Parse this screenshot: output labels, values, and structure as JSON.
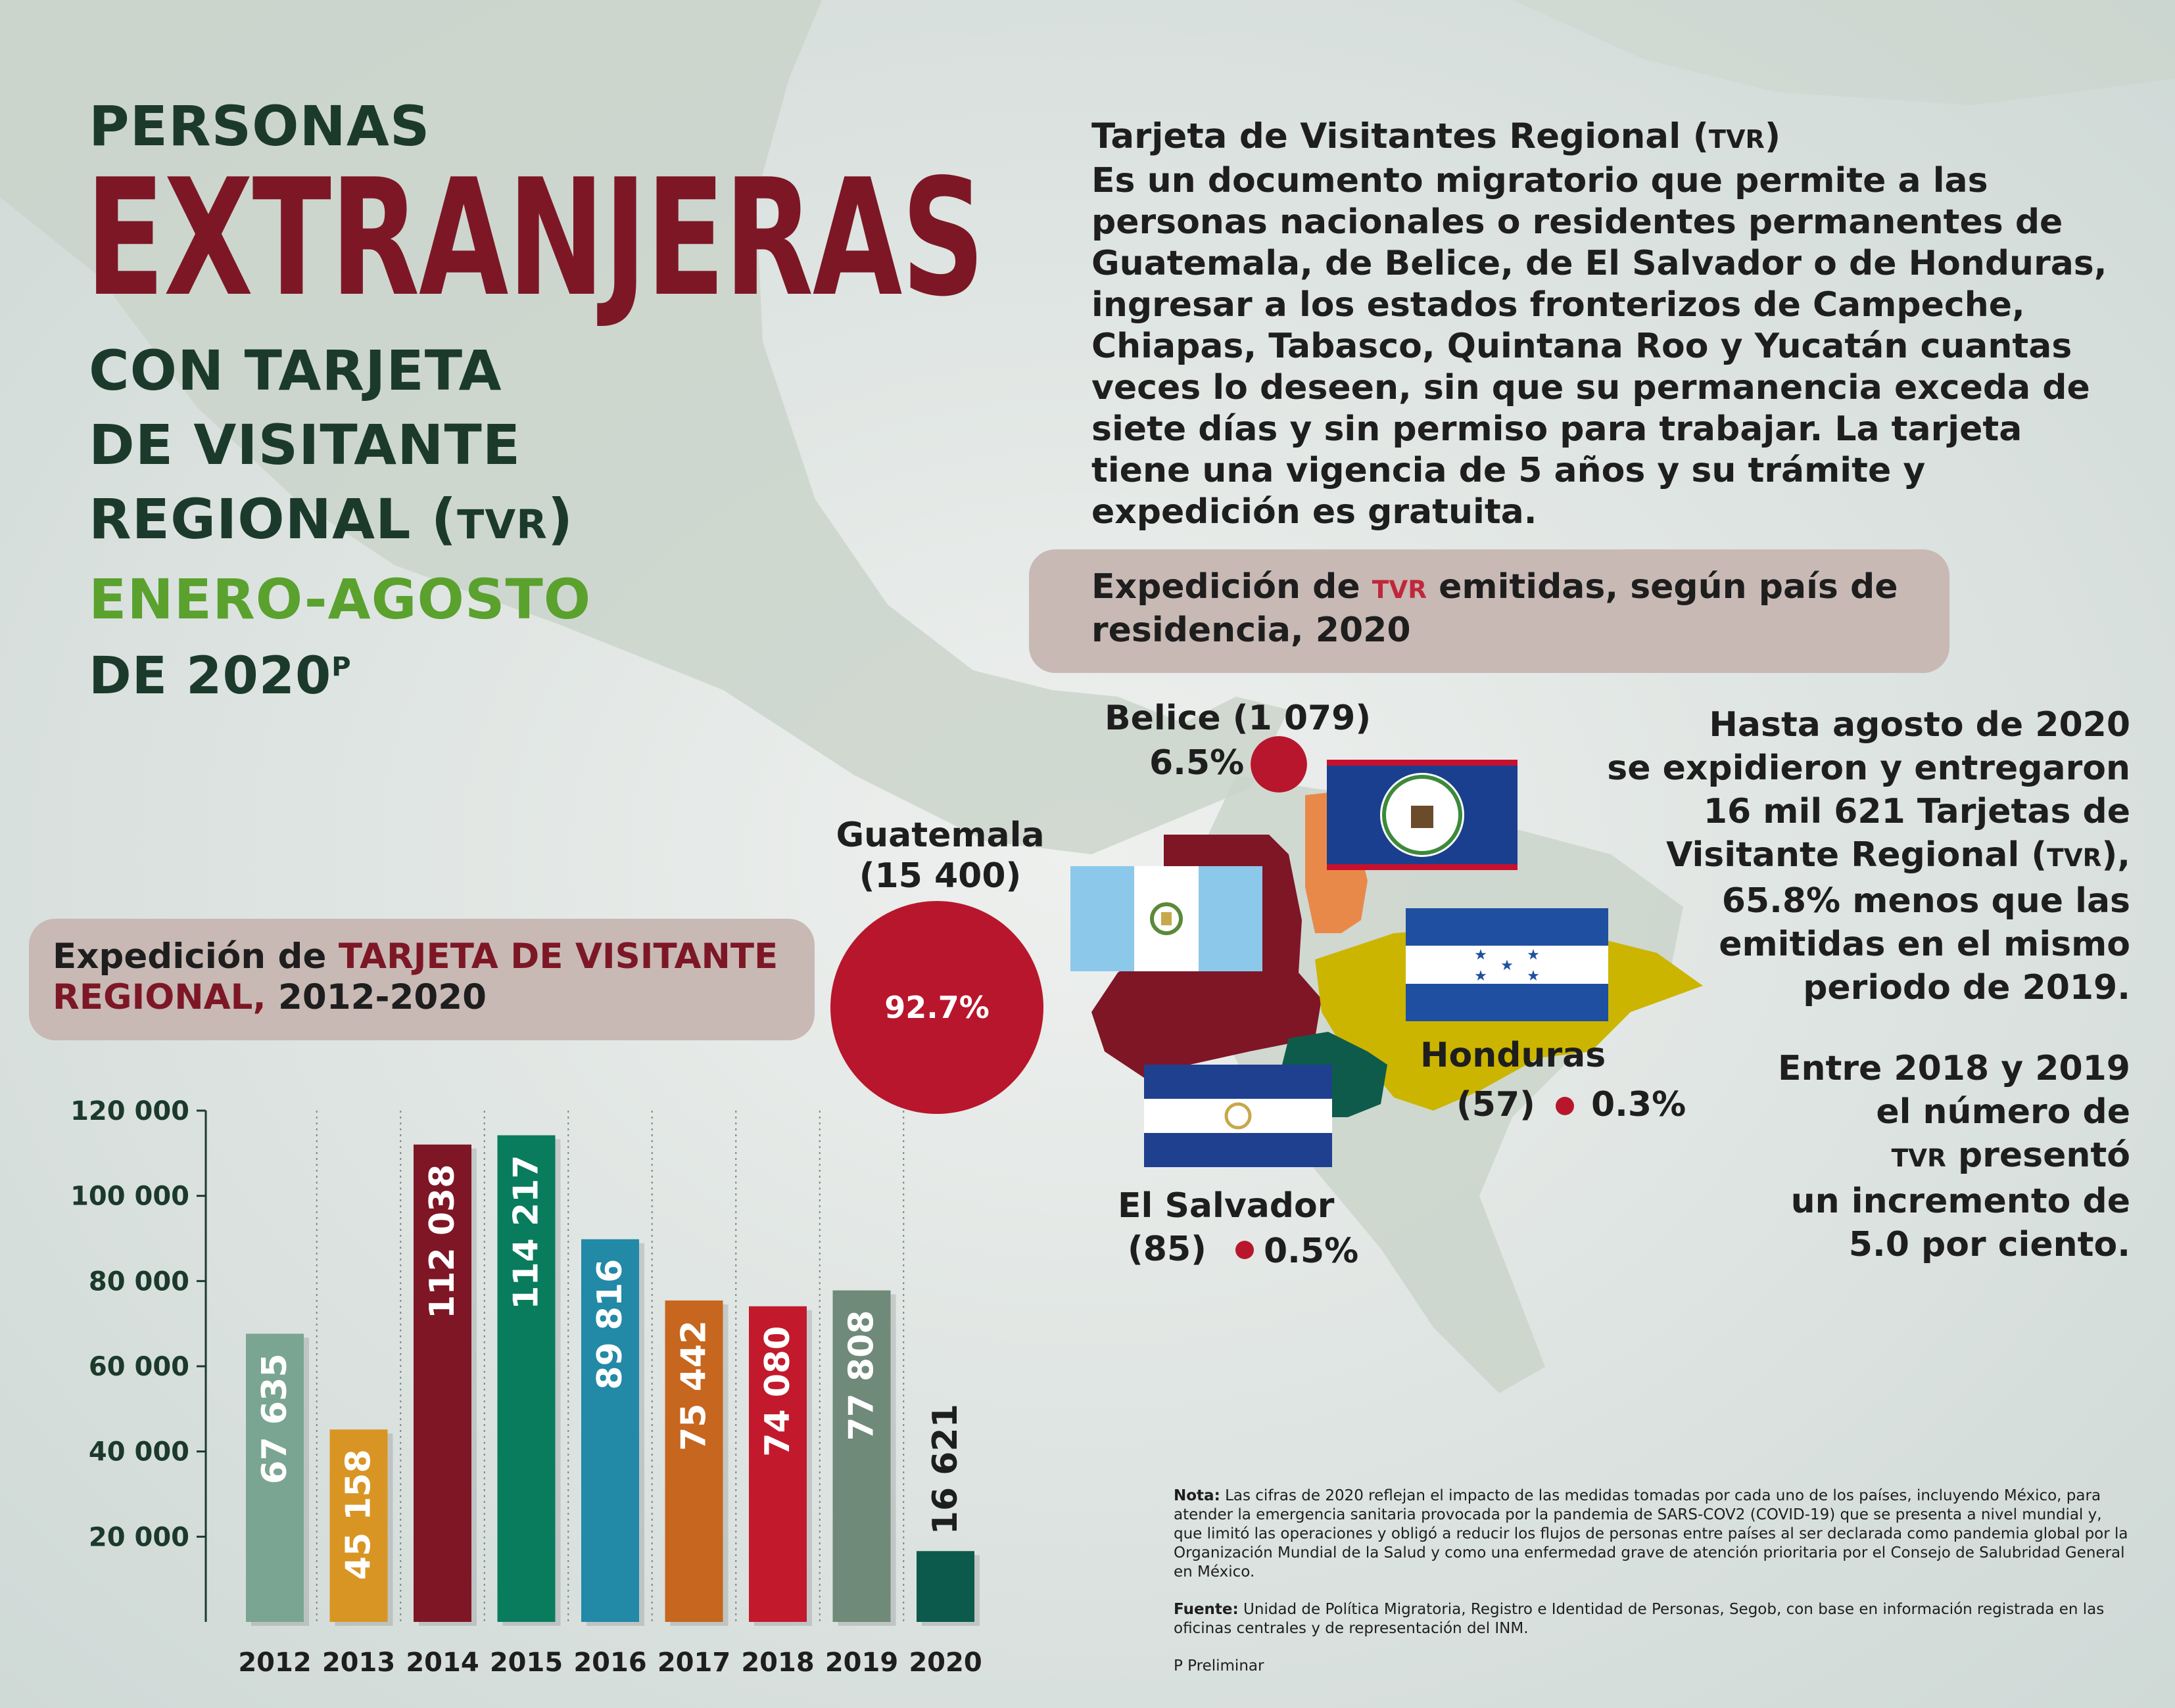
{
  "title": {
    "line1": "PERSONAS",
    "line2": "EXTRANJERAS",
    "line3": "CON TARJETA",
    "line4": "DE VISITANTE",
    "line5_main": "REGIONAL (",
    "line5_abbr": "TVR",
    "line5_end": ")",
    "line6": "ENERO-AGOSTO",
    "line7": "DE 2020",
    "line7_sup": "P"
  },
  "description": {
    "title": "Tarjeta de Visitantes Regional (",
    "title_abbr": "TVR",
    "title_end": ")",
    "body": "Es un documento migratorio que permite a las personas nacionales o residentes permanentes de Guatemala, de Belice, de El Salvador o de Honduras, ingresar a los estados fronterizos de Campeche, Chiapas, Tabasco, Quintana Roo y Yucatán cuantas veces lo deseen, sin que su permanencia exceda de siete días y sin permiso para trabajar. La tarjeta tiene una vigencia de 5 años y su trámite y expedición es gratuita."
  },
  "map_panel": {
    "heading_pre": "Expedición de ",
    "heading_abbr": "TVR",
    "heading_post": " emitidas, según país de residencia, 2020",
    "countries": [
      {
        "name": "Guatemala",
        "count": "(15 400)",
        "pct": "92.7%",
        "value": 15400,
        "color": "#b8162c"
      },
      {
        "name": "Belice",
        "count": "(1 079)",
        "pct": "6.5%",
        "value": 1079,
        "color": "#b8162c"
      },
      {
        "name": "Honduras",
        "count": "(57)",
        "pct": "0.3%",
        "value": 57,
        "color": "#b8162c"
      },
      {
        "name": "El Salvador",
        "count": "(85)",
        "pct": "0.5%",
        "value": 85,
        "color": "#b8162c"
      }
    ]
  },
  "stat1": {
    "l1": "Hasta agosto de 2020",
    "l2": "se expidieron y entregaron",
    "l3_bold": "16 mil 621",
    "l3_rest": " Tarjetas de",
    "l4_pre": "Visitante Regional (",
    "l4_abbr": "TVR",
    "l4_end": "),",
    "l5_bold": "65.8%",
    "l5_rest": " menos que las",
    "l6": "emitidas en el mismo",
    "l7": "periodo de 2019."
  },
  "stat2": {
    "l1": "Entre 2018 y 2019",
    "l2": "el número de",
    "l3_abbr": "TVR",
    "l3_rest": " presentó",
    "l4": "un incremento de",
    "l5_bold": "5.0 por ciento",
    "l5_end": "."
  },
  "chart_panel": {
    "heading_pre": "Expedición de ",
    "heading_red": "TARJETA DE VISITANTE REGIONAL,",
    "heading_post": " 2012-2020"
  },
  "chart_data": {
    "type": "bar",
    "categories": [
      "2012",
      "2013",
      "2014",
      "2015",
      "2016",
      "2017",
      "2018",
      "2019",
      "2020"
    ],
    "values": [
      67635,
      45158,
      112038,
      114217,
      89816,
      75442,
      74080,
      77808,
      16621
    ],
    "labels": [
      "67 635",
      "45 158",
      "112 038",
      "114 217",
      "89 816",
      "75 442",
      "74 080",
      "77 808",
      "16 621"
    ],
    "colors": [
      "#7aa592",
      "#d99523",
      "#7e1626",
      "#0a7c5e",
      "#2289a6",
      "#c7661e",
      "#c21a2c",
      "#6f8a79",
      "#0c5a4b"
    ],
    "yticks": [
      20000,
      40000,
      60000,
      80000,
      100000,
      120000
    ],
    "ytick_labels": [
      "20 000",
      "40 000",
      "60 000",
      "80 000",
      "100 000",
      "120 000"
    ],
    "ylim": [
      0,
      120000
    ],
    "grid": "vertical dotted separators"
  },
  "note": {
    "label": "Nota:",
    "text": " Las cifras de 2020 reflejan el impacto de las medidas tomadas por cada uno de los países, incluyendo México, para atender la emergencia sanitaria provocada por la pandemia de SARS-COV2 (COVID-19) que se presenta a nivel mundial y, que limitó las operaciones y obligó a reducir los flujos de personas entre países al ser declarada como pandemia global por la Organización Mundial de la Salud y como una enfermedad grave de atención prioritaria por el Consejo de Salubridad General en México."
  },
  "fuente": {
    "label": "Fuente:",
    "text": " Unidad de Política Migratoria, Registro e Identidad de Personas, Segob, con base en información registrada en las oficinas centrales y de representación del INM."
  },
  "prelim": "P Preliminar"
}
